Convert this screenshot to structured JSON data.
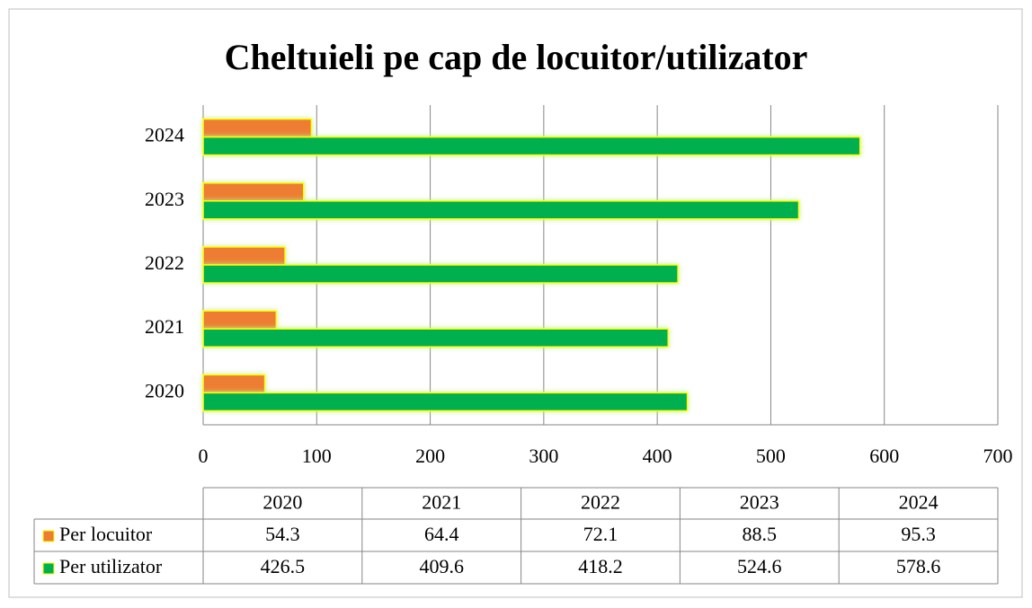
{
  "chart_data": {
    "type": "bar",
    "orientation": "horizontal",
    "title": "Cheltuieli pe cap de locuitor/utilizator",
    "categories": [
      "2020",
      "2021",
      "2022",
      "2023",
      "2024"
    ],
    "series": [
      {
        "name": "Per locuitor",
        "color": "#ed7d31",
        "values": [
          54.3,
          64.4,
          72.1,
          88.5,
          95.3
        ]
      },
      {
        "name": "Per utilizator",
        "color": "#00b050",
        "values": [
          426.5,
          409.6,
          418.2,
          524.6,
          578.6
        ]
      }
    ],
    "xlim": [
      0,
      700
    ],
    "xticks": [
      0,
      100,
      200,
      300,
      400,
      500,
      600,
      700
    ],
    "grid": true,
    "data_table": true
  }
}
